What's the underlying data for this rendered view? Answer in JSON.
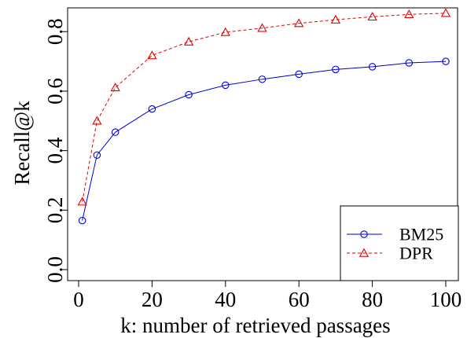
{
  "chart_data": {
    "type": "line",
    "title": "",
    "xlabel": "k: number of retrieved passages",
    "ylabel": "Recall@k",
    "xlim": [
      0,
      100
    ],
    "ylim": [
      0.0,
      0.88
    ],
    "x_ticks": [
      0,
      20,
      40,
      60,
      80,
      100
    ],
    "y_ticks": [
      0.0,
      0.2,
      0.4,
      0.6,
      0.8
    ],
    "x_tick_labels": [
      "0",
      "20",
      "40",
      "60",
      "80",
      "100"
    ],
    "y_tick_labels": [
      "0.0",
      "0.2",
      "0.4",
      "0.6",
      "0.8"
    ],
    "x": [
      1,
      5,
      10,
      20,
      30,
      40,
      50,
      60,
      70,
      80,
      90,
      100
    ],
    "series": [
      {
        "name": "BM25",
        "color": "#0000cc",
        "marker": "circle",
        "line_style": "solid",
        "values": [
          0.165,
          0.385,
          0.462,
          0.54,
          0.588,
          0.62,
          0.64,
          0.657,
          0.673,
          0.682,
          0.695,
          0.7
        ]
      },
      {
        "name": "DPR",
        "color": "#e00000",
        "marker": "triangle",
        "line_style": "dashed",
        "values": [
          0.228,
          0.5,
          0.612,
          0.72,
          0.766,
          0.798,
          0.812,
          0.828,
          0.84,
          0.85,
          0.858,
          0.862
        ]
      }
    ],
    "grid": false,
    "legend_position": "bottom-right"
  }
}
